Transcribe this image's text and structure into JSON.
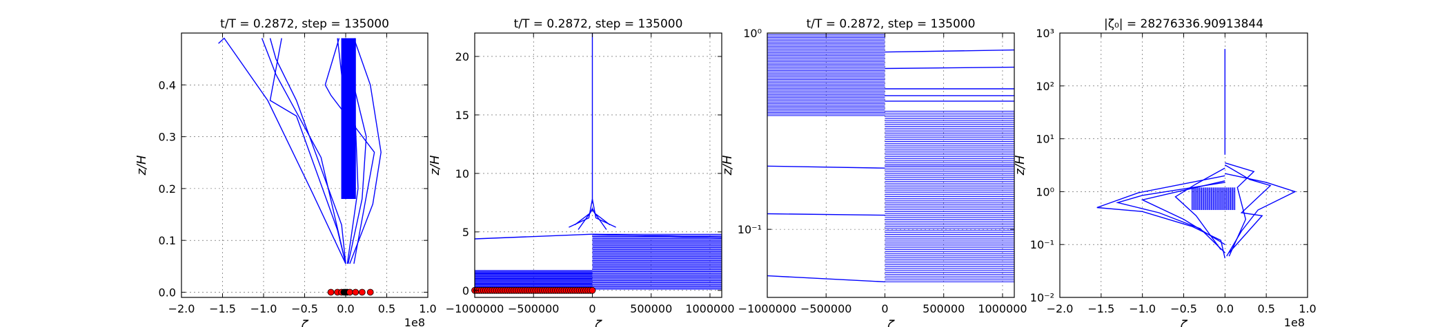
{
  "chart_data": [
    {
      "type": "line",
      "title": "t/T = 0.2872, step = 135000",
      "xlabel": "ζ",
      "ylabel": "z/H",
      "x_offset_label": "1e8",
      "xscale": "linear",
      "yscale": "linear",
      "xlim": [
        -2.0,
        1.0
      ],
      "ylim": [
        -0.01,
        0.5
      ],
      "xticks": [
        -2.0,
        -1.5,
        -1.0,
        -0.5,
        0.0,
        0.5,
        1.0
      ],
      "xtick_labels": [
        "−2.0",
        "−1.5",
        "−1.0",
        "−0.5",
        "0.0",
        "0.5",
        "1.0"
      ],
      "yticks": [
        0.0,
        0.1,
        0.2,
        0.3,
        0.4
      ],
      "ytick_labels": [
        "0.0",
        "0.1",
        "0.2",
        "0.3",
        "0.4"
      ],
      "grid": true,
      "series": [
        {
          "x": [
            -1.55,
            -1.48,
            -0.95,
            -0.4,
            0.0
          ],
          "y": [
            0.48,
            0.49,
            0.37,
            0.19,
            0.055
          ]
        },
        {
          "x": [
            -1.02,
            -0.85,
            -0.3,
            0.0
          ],
          "y": [
            0.49,
            0.42,
            0.26,
            0.055
          ]
        },
        {
          "x": [
            -0.92,
            -0.85,
            -0.6,
            -0.05,
            0.0
          ],
          "y": [
            0.49,
            0.45,
            0.37,
            0.13,
            0.055
          ]
        },
        {
          "x": [
            -0.78,
            -0.92,
            -0.6,
            -0.1,
            0.0
          ],
          "y": [
            0.49,
            0.37,
            0.34,
            0.12,
            0.055
          ]
        },
        {
          "x": [
            -0.08,
            -0.25,
            -0.18,
            0.35,
            0.1
          ],
          "y": [
            0.49,
            0.4,
            0.38,
            0.27,
            0.055
          ]
        },
        {
          "x": [
            0.1,
            0.3,
            0.43,
            0.33,
            0.05
          ],
          "y": [
            0.49,
            0.4,
            0.27,
            0.17,
            0.055
          ]
        },
        {
          "x": [
            -0.05,
            0.02,
            0.25,
            0.2,
            0.03
          ],
          "y": [
            0.49,
            0.45,
            0.3,
            0.18,
            0.055
          ]
        },
        {
          "x": [
            -0.1,
            -0.05,
            0.12,
            0.15,
            0.02
          ],
          "y": [
            0.49,
            0.42,
            0.32,
            0.2,
            0.055
          ]
        }
      ],
      "band": {
        "x_min": -0.05,
        "x_max": 0.12,
        "y_min": 0.18,
        "y_max": 0.49
      },
      "markers": [
        {
          "x": -0.18,
          "y": 0.0,
          "color": "#ff0000"
        },
        {
          "x": -0.1,
          "y": 0.0,
          "color": "#ff0000"
        },
        {
          "x": -0.05,
          "y": 0.0,
          "color": "#ff0000"
        },
        {
          "x": -0.02,
          "y": 0.0,
          "color": "#000000"
        },
        {
          "x": 0.0,
          "y": 0.0,
          "color": "#000000"
        },
        {
          "x": 0.02,
          "y": 0.0,
          "color": "#000000"
        },
        {
          "x": 0.05,
          "y": 0.0,
          "color": "#ff0000"
        },
        {
          "x": 0.12,
          "y": 0.0,
          "color": "#ff0000"
        },
        {
          "x": 0.2,
          "y": 0.0,
          "color": "#ff0000"
        },
        {
          "x": 0.3,
          "y": 0.0,
          "color": "#ff0000"
        }
      ]
    },
    {
      "type": "line",
      "title": "t/T = 0.2872, step = 135000",
      "xlabel": "ζ",
      "ylabel": "z/H",
      "xscale": "linear",
      "yscale": "linear",
      "xlim": [
        -1000000,
        1100000
      ],
      "ylim": [
        -0.6,
        22
      ],
      "xticks": [
        -1000000,
        -500000,
        0,
        500000,
        1000000
      ],
      "xtick_labels": [
        "−1000000",
        "−500000",
        "0",
        "500000",
        "1000000"
      ],
      "yticks": [
        0,
        5,
        10,
        15,
        20
      ],
      "ytick_labels": [
        "0",
        "5",
        "10",
        "15",
        "20"
      ],
      "grid": true,
      "series": [
        {
          "x": [
            0,
            0
          ],
          "y": [
            7.5,
            22
          ]
        },
        {
          "x": [
            -1000000,
            0
          ],
          "y": [
            4.4,
            4.8
          ]
        },
        {
          "x": [
            0,
            1100000
          ],
          "y": [
            4.8,
            4.5
          ]
        },
        {
          "x": [
            -200000,
            -30000,
            0,
            30000,
            200000
          ],
          "y": [
            5.4,
            6.2,
            7.8,
            6.2,
            5.4
          ]
        },
        {
          "x": [
            -150000,
            -20000,
            0,
            20000,
            150000
          ],
          "y": [
            5.6,
            6.6,
            7.0,
            6.6,
            5.6
          ]
        },
        {
          "x": [
            -120000,
            0,
            120000
          ],
          "y": [
            5.2,
            6.9,
            5.2
          ]
        }
      ],
      "band_left": {
        "x_min": -1000000,
        "x_max": 0,
        "y_min": -0.2,
        "y_max": 1.7
      },
      "band_right": {
        "x_min": 0,
        "x_max": 1100000,
        "y_min": 0.1,
        "y_max": 4.8
      },
      "marker_row": {
        "x_min": -1000000,
        "x_max": 0,
        "y": 0.0,
        "count": 55,
        "color": "#ff0000"
      }
    },
    {
      "type": "line",
      "title": "t/T = 0.2872, step = 135000",
      "xlabel": "ζ",
      "ylabel": "z/H",
      "xscale": "linear",
      "yscale": "log",
      "xlim": [
        -1000000,
        1100000
      ],
      "ylim": [
        0.045,
        1.0
      ],
      "xticks": [
        -1000000,
        -500000,
        0,
        500000,
        1000000
      ],
      "xtick_labels": [
        "−1000000",
        "−500000",
        "0",
        "500000",
        "1000000"
      ],
      "yticks": [
        0.1,
        1.0
      ],
      "ytick_labels": [
        "10⁻¹",
        "10⁰"
      ],
      "grid": true,
      "series": [
        {
          "x": [
            -1000000,
            0
          ],
          "y": [
            0.058,
            0.054
          ]
        },
        {
          "x": [
            -1000000,
            0
          ],
          "y": [
            0.12,
            0.118
          ]
        },
        {
          "x": [
            -1000000,
            0
          ],
          "y": [
            0.21,
            0.205
          ]
        },
        {
          "x": [
            0,
            1100000
          ],
          "y": [
            0.21,
            0.21
          ]
        },
        {
          "x": [
            0,
            1100000
          ],
          "y": [
            0.8,
            0.82
          ]
        },
        {
          "x": [
            0,
            1100000
          ],
          "y": [
            0.66,
            0.67
          ]
        },
        {
          "x": [
            0,
            1100000
          ],
          "y": [
            0.52,
            0.52
          ]
        },
        {
          "x": [
            0,
            1100000
          ],
          "y": [
            0.48,
            0.48
          ]
        },
        {
          "x": [
            0,
            1100000
          ],
          "y": [
            0.45,
            0.45
          ]
        }
      ],
      "band_left": {
        "x_min": -1000000,
        "x_max": 0,
        "y_min": 0.38,
        "y_max": 1.0
      },
      "band_right": {
        "x_min": 0,
        "x_max": 1100000,
        "y_min": 0.054,
        "y_max": 0.4
      }
    },
    {
      "type": "line",
      "title": "|ζ₀| = 28276336.90913844",
      "xlabel": "ζ",
      "ylabel": "z/H",
      "x_offset_label": "1e8",
      "xscale": "linear",
      "yscale": "log",
      "xlim": [
        -2.0,
        1.0
      ],
      "ylim": [
        0.01,
        1000
      ],
      "xticks": [
        -2.0,
        -1.5,
        -1.0,
        -0.5,
        0.0,
        0.5,
        1.0
      ],
      "xtick_labels": [
        "−2.0",
        "−1.5",
        "−1.0",
        "−0.5",
        "0.0",
        "0.5",
        "1.0"
      ],
      "yticks": [
        0.01,
        0.1,
        1,
        10,
        100,
        1000
      ],
      "ytick_labels": [
        "10⁻²",
        "10⁻¹",
        "10⁰",
        "10¹",
        "10²",
        "10³"
      ],
      "grid": true,
      "series": [
        {
          "x": [
            0,
            0
          ],
          "y": [
            5,
            500
          ]
        },
        {
          "x": [
            0,
            -1.05,
            -1.55,
            -1.0,
            -0.4,
            -0.05,
            0
          ],
          "y": [
            2.0,
            0.95,
            0.5,
            0.42,
            0.22,
            0.12,
            0.055
          ]
        },
        {
          "x": [
            0,
            -1.0,
            -1.3,
            -0.8,
            -0.3,
            0
          ],
          "y": [
            1.5,
            0.85,
            0.62,
            0.4,
            0.2,
            0.07
          ]
        },
        {
          "x": [
            0,
            -0.7,
            -1.0,
            -0.5,
            0
          ],
          "y": [
            1.6,
            0.9,
            0.7,
            0.3,
            0.1
          ]
        },
        {
          "x": [
            0,
            0.5,
            0.85,
            0.4,
            0.2,
            0.02
          ],
          "y": [
            2.2,
            1.5,
            1.0,
            0.45,
            0.18,
            0.06
          ]
        },
        {
          "x": [
            0,
            0.3,
            0.55,
            0.2,
            0.45,
            0.05
          ],
          "y": [
            3.2,
            1.7,
            1.3,
            0.4,
            0.35,
            0.07
          ]
        },
        {
          "x": [
            0,
            0.35,
            0.15,
            0.25,
            0.05
          ],
          "y": [
            3.5,
            2.4,
            1.2,
            0.3,
            0.06
          ]
        },
        {
          "x": [
            0,
            -0.35,
            -0.6,
            -0.35,
            -0.05
          ],
          "y": [
            2.8,
            1.4,
            0.8,
            0.35,
            0.08
          ]
        }
      ],
      "band": {
        "x_min": -0.4,
        "x_max": 0.12,
        "y_min": 0.45,
        "y_max": 1.2
      }
    }
  ]
}
